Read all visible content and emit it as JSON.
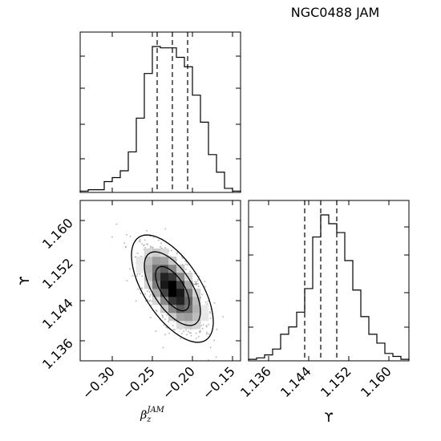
{
  "figure": {
    "title": "NGC0488 JAM"
  },
  "chart_data": [
    {
      "type": "histogram",
      "panel": "beta_z_marginal",
      "xlabel": "β_z^JAM",
      "xlim": [
        -0.34,
        -0.14
      ],
      "bin_edges": [
        -0.34,
        -0.33,
        -0.32,
        -0.31,
        -0.3,
        -0.29,
        -0.28,
        -0.27,
        -0.26,
        -0.25,
        -0.24,
        -0.23,
        -0.22,
        -0.21,
        -0.2,
        -0.19,
        -0.18,
        -0.17,
        -0.16,
        -0.15,
        -0.14
      ],
      "counts": [
        1,
        2,
        2,
        8,
        11,
        16,
        30,
        55,
        88,
        108,
        107,
        107,
        100,
        93,
        72,
        52,
        28,
        15,
        3,
        1
      ],
      "quantile_lines": [
        -0.244,
        -0.225,
        -0.206
      ],
      "quantile_style": "dashed"
    },
    {
      "type": "histogram",
      "panel": "upsilon_marginal",
      "xlabel": "ϒ",
      "xlim": [
        1.132,
        1.164
      ],
      "xticks": [
        "1.136",
        "1.144",
        "1.152",
        "1.160"
      ],
      "bin_edges": [
        1.132,
        1.1336,
        1.1352,
        1.1368,
        1.1384,
        1.14,
        1.1416,
        1.1432,
        1.1448,
        1.1464,
        1.148,
        1.1496,
        1.1512,
        1.1528,
        1.1544,
        1.156,
        1.1576,
        1.1592,
        1.1608,
        1.1624,
        1.164
      ],
      "counts": [
        1,
        2,
        4,
        8,
        18,
        23,
        33,
        49,
        84,
        99,
        93,
        87,
        68,
        48,
        30,
        18,
        12,
        5,
        3,
        1
      ],
      "quantile_lines": [
        1.1432,
        1.1464,
        1.1496
      ],
      "quantile_style": "dashed"
    },
    {
      "type": "heatmap",
      "panel": "joint_2d",
      "xlabel": "β_z^JAM",
      "ylabel": "ϒ",
      "xlim": [
        -0.34,
        -0.14
      ],
      "ylim": [
        1.132,
        1.164
      ],
      "xticks": [
        "−0.30",
        "−0.25",
        "−0.20",
        "−0.15"
      ],
      "yticks": [
        "1.136",
        "1.144",
        "1.152",
        "1.160"
      ],
      "correlation": "negative",
      "mean": [
        -0.225,
        1.1464
      ],
      "scatter_points": "grey",
      "contour_levels": 3,
      "colors": {
        "density": "#000000",
        "points": "#9a9a9a",
        "axes": "#000000"
      }
    }
  ]
}
